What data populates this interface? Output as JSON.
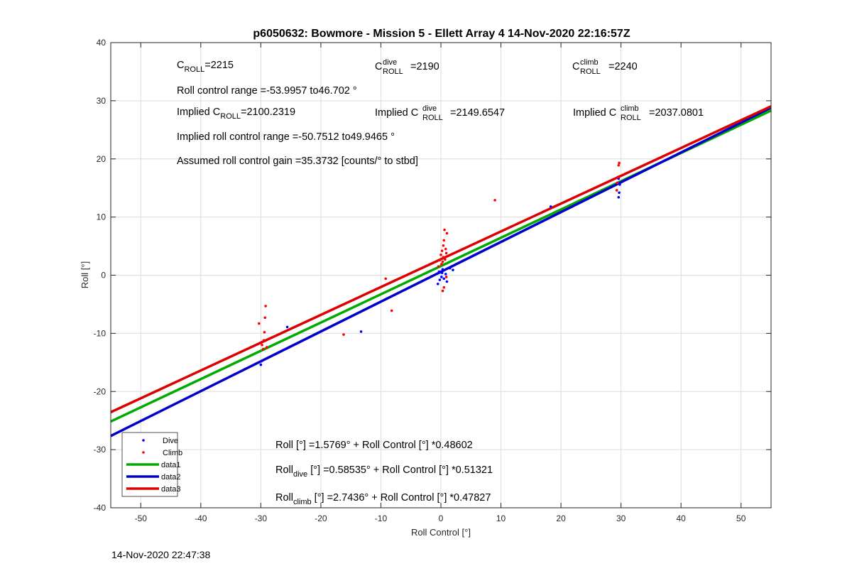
{
  "chart_data": {
    "type": "scatter",
    "title": "p6050632: Bowmore - Mission 5 - Ellett Array 4 14-Nov-2020 22:16:57Z",
    "xlabel": "Roll Control [°]",
    "ylabel": "Roll [°]",
    "xlim": [
      -55,
      55
    ],
    "ylim": [
      -40,
      40
    ],
    "xticks": [
      -50,
      -40,
      -30,
      -20,
      -10,
      0,
      10,
      20,
      30,
      40,
      50
    ],
    "yticks": [
      -40,
      -30,
      -20,
      -10,
      0,
      10,
      20,
      30,
      40
    ],
    "grid": true,
    "legend_position": "bottom-left",
    "series": [
      {
        "name": "Dive",
        "kind": "points",
        "color": "#0000ff",
        "points": [
          [
            -30,
            -15.4
          ],
          [
            -29.9,
            -14.8
          ],
          [
            -25.6,
            -8.9
          ],
          [
            -13.3,
            -9.7
          ],
          [
            -0.5,
            -1.5
          ],
          [
            -0.2,
            -0.8
          ],
          [
            0.1,
            -0.3
          ],
          [
            0.2,
            0.4
          ],
          [
            0.3,
            1.0
          ],
          [
            0.5,
            -0.6
          ],
          [
            0.8,
            0.2
          ],
          [
            1.0,
            -1.1
          ],
          [
            -0.3,
            0.6
          ],
          [
            1.5,
            1.2
          ],
          [
            2.0,
            0.9
          ],
          [
            18.3,
            11.8
          ],
          [
            29.6,
            13.4
          ],
          [
            29.7,
            14.2
          ],
          [
            29.8,
            15.6
          ],
          [
            29.6,
            16.6
          ]
        ]
      },
      {
        "name": "Climb",
        "kind": "points",
        "color": "#ff0000",
        "points": [
          [
            -30.3,
            -8.3
          ],
          [
            -29.8,
            -12.0
          ],
          [
            -29.6,
            -12.7
          ],
          [
            -29.5,
            -11.2
          ],
          [
            -29.4,
            -9.8
          ],
          [
            -29.3,
            -7.3
          ],
          [
            -29.2,
            -5.3
          ],
          [
            -29.0,
            -12.4
          ],
          [
            -16.2,
            -10.2
          ],
          [
            -9.2,
            -0.6
          ],
          [
            -8.2,
            -6.1
          ],
          [
            -0.4,
            1.5
          ],
          [
            -0.2,
            2.6
          ],
          [
            0.0,
            3.5
          ],
          [
            0.1,
            1.9
          ],
          [
            0.2,
            4.2
          ],
          [
            0.3,
            2.3
          ],
          [
            0.4,
            5.1
          ],
          [
            0.4,
            3.1
          ],
          [
            0.5,
            6.0
          ],
          [
            0.6,
            7.8
          ],
          [
            0.7,
            2.7
          ],
          [
            0.8,
            4.5
          ],
          [
            0.9,
            3.8
          ],
          [
            1.0,
            7.2
          ],
          [
            0.5,
            -2.1
          ],
          [
            0.3,
            -2.7
          ],
          [
            0.9,
            -0.3
          ],
          [
            9.0,
            12.9
          ],
          [
            29.3,
            14.6
          ],
          [
            29.4,
            15.9
          ],
          [
            29.5,
            16.9
          ],
          [
            29.6,
            18.9
          ],
          [
            29.7,
            19.3
          ]
        ]
      },
      {
        "name": "data1",
        "kind": "line",
        "color": "#00aa00",
        "points": [
          [
            -55,
            -25.15
          ],
          [
            55,
            28.31
          ]
        ]
      },
      {
        "name": "data2",
        "kind": "line",
        "color": "#0000cc",
        "points": [
          [
            -55,
            -27.64
          ],
          [
            55,
            28.81
          ]
        ]
      },
      {
        "name": "data3",
        "kind": "line",
        "color": "#dd0000",
        "points": [
          [
            -55,
            -23.56
          ],
          [
            55,
            29.05
          ]
        ]
      }
    ],
    "annotations": {
      "c_roll": {
        "main": "C",
        "sub": "ROLL",
        "rest": "=2215"
      },
      "c_dive": {
        "main": "C",
        "sup": "dive",
        "sub": "ROLL",
        "rest": "=2190"
      },
      "c_climb": {
        "main": "C",
        "sup": "climb",
        "sub": "ROLL",
        "rest": "=2240"
      },
      "range": "Roll control range =-53.9957 to46.702 °",
      "implied_c_roll": {
        "pre": "Implied C",
        "sub": "ROLL",
        "rest": "=2100.2319"
      },
      "implied_c_dive": {
        "pre": "Implied C",
        "sup": "dive",
        "sub": "ROLL",
        "rest": "=2149.6547"
      },
      "implied_c_climb": {
        "pre": "Implied C",
        "sup": "climb",
        "sub": "ROLL",
        "rest": "=2037.0801"
      },
      "implied_range": "Implied roll control range =-50.7512 to49.9465 °",
      "gain": "Assumed roll control gain =35.3732 [counts/° to stbd]",
      "eq_all": "Roll [°] =1.5769° + Roll Control [°] *0.48602",
      "eq_dive": {
        "pre": "Roll",
        "sub": "dive",
        "rest": " [°] =0.58535° + Roll Control [°] *0.51321"
      },
      "eq_climb": {
        "pre": "Roll",
        "sub": "climb",
        "rest": " [°] =2.7436° + Roll Control [°] *0.47827"
      }
    }
  },
  "footer_timestamp": "14-Nov-2020 22:47:38"
}
